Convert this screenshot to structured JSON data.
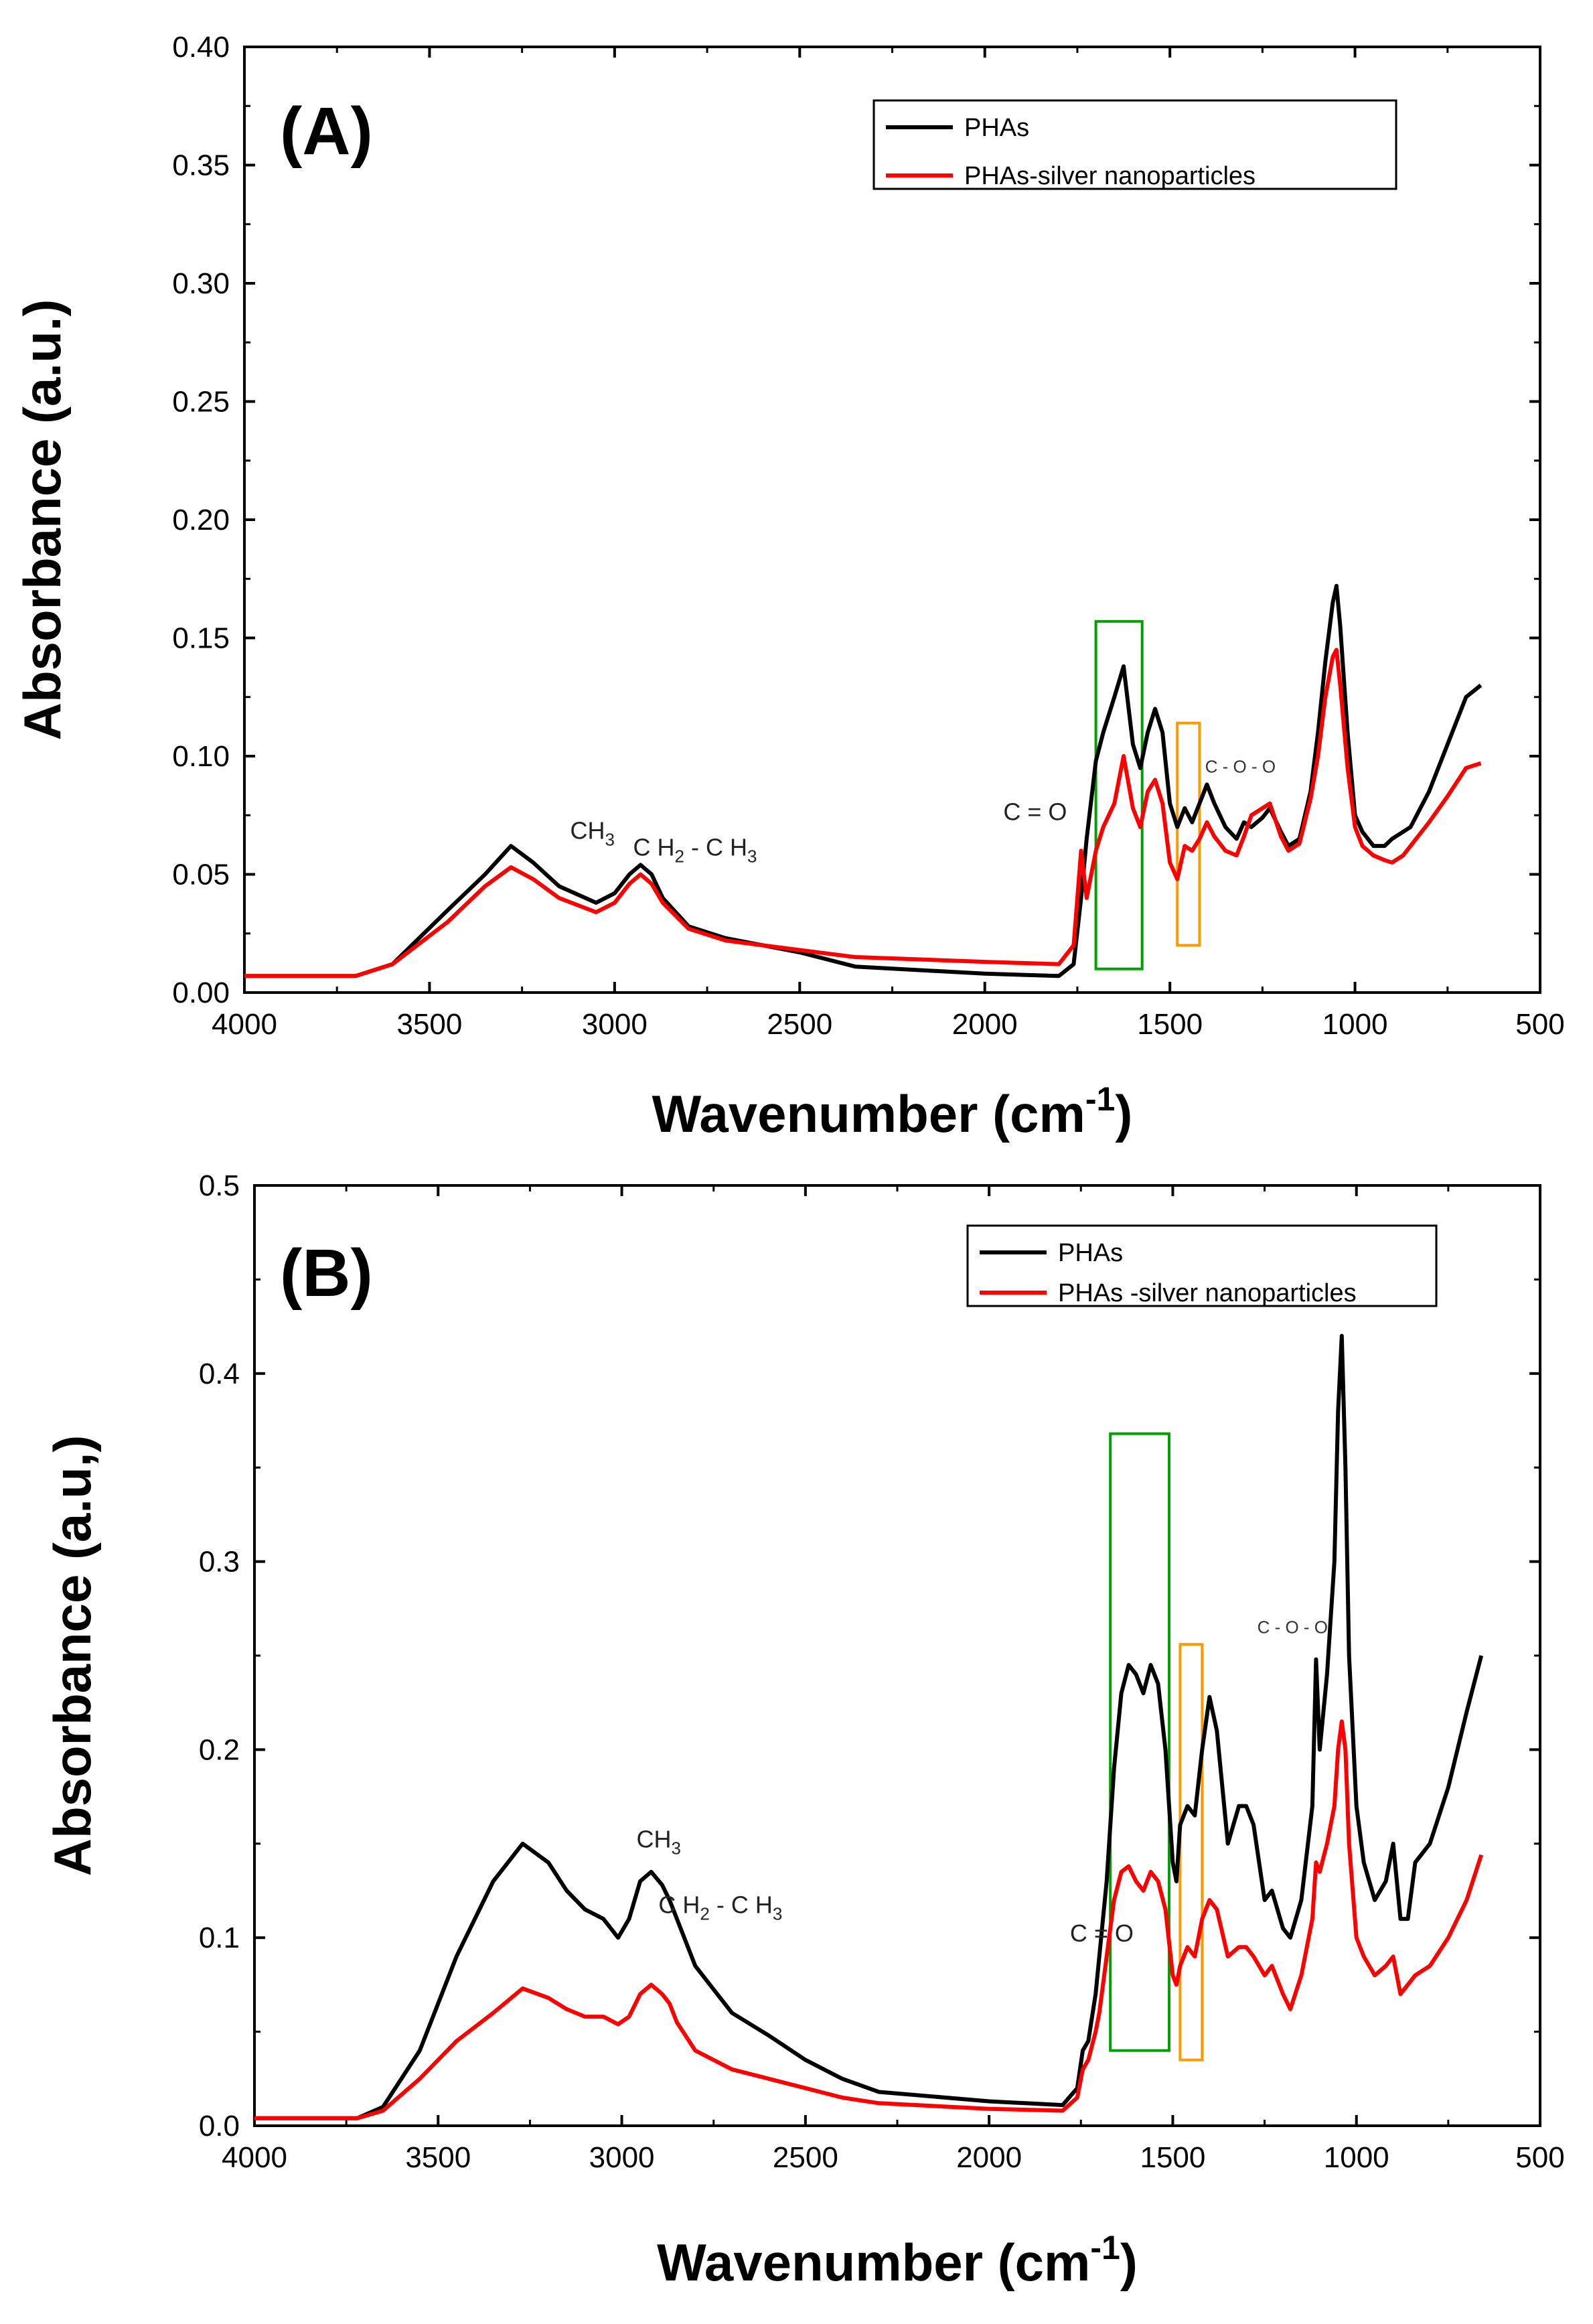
{
  "chart_data": [
    {
      "type": "line",
      "panel_label": "(A)",
      "xlabel": "Wavenumber (cm",
      "xlabel_sup": "-1",
      "xlabel_end": ")",
      "ylabel": "Absorbance (a.u.)",
      "xlim": [
        4000,
        500
      ],
      "ylim": [
        0,
        0.4
      ],
      "xticks": [
        4000,
        3500,
        3000,
        2500,
        2000,
        1500,
        1000,
        500
      ],
      "xtick_labels": [
        "4000",
        "3500",
        "3000",
        "2500",
        "2000",
        "1500",
        "1000",
        "500"
      ],
      "yticks": [
        0,
        0.05,
        0.1,
        0.15,
        0.2,
        0.25,
        0.3,
        0.35,
        0.4
      ],
      "ytick_labels": [
        "0.00",
        "0.05",
        "0.10",
        "0.15",
        "0.20",
        "0.25",
        "0.30",
        "0.35",
        "0.40"
      ],
      "legend": {
        "position": "top-right",
        "entries": [
          "PHAs",
          "PHAs-silver nanoparticles"
        ]
      },
      "series": [
        {
          "name": "PHAs",
          "color": "#000000",
          "x": [
            4000,
            3700,
            3600,
            3450,
            3350,
            3280,
            3220,
            3150,
            3050,
            3000,
            2960,
            2930,
            2900,
            2870,
            2800,
            2700,
            2500,
            2350,
            2000,
            1800,
            1760,
            1740,
            1725,
            1700,
            1680,
            1650,
            1625,
            1600,
            1580,
            1560,
            1540,
            1520,
            1500,
            1480,
            1460,
            1440,
            1420,
            1400,
            1380,
            1350,
            1320,
            1300,
            1280,
            1250,
            1230,
            1200,
            1180,
            1150,
            1120,
            1100,
            1080,
            1060,
            1050,
            1040,
            1020,
            1000,
            980,
            950,
            920,
            900,
            870,
            850,
            800,
            750,
            700,
            660
          ],
          "y": [
            0.007,
            0.007,
            0.012,
            0.035,
            0.05,
            0.062,
            0.055,
            0.045,
            0.038,
            0.042,
            0.05,
            0.054,
            0.05,
            0.04,
            0.028,
            0.023,
            0.017,
            0.011,
            0.008,
            0.007,
            0.012,
            0.04,
            0.065,
            0.098,
            0.11,
            0.125,
            0.138,
            0.105,
            0.095,
            0.11,
            0.12,
            0.11,
            0.08,
            0.07,
            0.078,
            0.072,
            0.08,
            0.088,
            0.08,
            0.07,
            0.065,
            0.072,
            0.07,
            0.074,
            0.078,
            0.068,
            0.062,
            0.065,
            0.085,
            0.11,
            0.14,
            0.165,
            0.172,
            0.155,
            0.11,
            0.075,
            0.068,
            0.062,
            0.062,
            0.065,
            0.068,
            0.07,
            0.085,
            0.105,
            0.125,
            0.13
          ]
        },
        {
          "name": "PHAs-silver nanoparticles",
          "color": "#ff0000",
          "x": [
            4000,
            3700,
            3600,
            3450,
            3350,
            3280,
            3220,
            3150,
            3050,
            3000,
            2960,
            2930,
            2900,
            2870,
            2800,
            2700,
            2500,
            2350,
            2000,
            1800,
            1760,
            1740,
            1725,
            1700,
            1680,
            1650,
            1625,
            1600,
            1580,
            1560,
            1540,
            1520,
            1500,
            1480,
            1460,
            1440,
            1420,
            1400,
            1380,
            1350,
            1320,
            1300,
            1280,
            1250,
            1230,
            1200,
            1180,
            1150,
            1120,
            1100,
            1080,
            1060,
            1050,
            1040,
            1020,
            1000,
            980,
            950,
            920,
            900,
            870,
            850,
            800,
            750,
            700,
            660
          ],
          "y": [
            0.007,
            0.007,
            0.012,
            0.03,
            0.045,
            0.053,
            0.048,
            0.04,
            0.034,
            0.038,
            0.046,
            0.05,
            0.046,
            0.038,
            0.027,
            0.022,
            0.018,
            0.015,
            0.013,
            0.012,
            0.02,
            0.06,
            0.04,
            0.06,
            0.07,
            0.08,
            0.1,
            0.078,
            0.07,
            0.085,
            0.09,
            0.08,
            0.055,
            0.048,
            0.062,
            0.06,
            0.065,
            0.072,
            0.066,
            0.06,
            0.058,
            0.066,
            0.075,
            0.078,
            0.08,
            0.066,
            0.06,
            0.063,
            0.082,
            0.1,
            0.125,
            0.142,
            0.145,
            0.13,
            0.095,
            0.07,
            0.062,
            0.058,
            0.056,
            0.055,
            0.058,
            0.062,
            0.072,
            0.083,
            0.095,
            0.097
          ]
        }
      ],
      "annotations": [
        {
          "text": "CH",
          "sub": "3",
          "x": 3120,
          "y": 0.065,
          "size": "normal"
        },
        {
          "text": "C H",
          "sub": "2",
          "mid": " - C H",
          "sub2": "3",
          "x": 2950,
          "y": 0.058,
          "size": "normal"
        },
        {
          "text": "C = O",
          "x": 1950,
          "y": 0.073,
          "size": "normal"
        },
        {
          "text": "C - O - O",
          "x": 1405,
          "y": 0.093,
          "size": "small"
        }
      ],
      "boxes": [
        {
          "color": "#00a000",
          "x0": 1700,
          "x1": 1575,
          "y0": 0.01,
          "y1": 0.157
        },
        {
          "color": "#ff9900",
          "x0": 1480,
          "x1": 1420,
          "y0": 0.02,
          "y1": 0.114
        }
      ]
    },
    {
      "type": "line",
      "panel_label": "(B)",
      "xlabel": "Wavenumber (cm",
      "xlabel_sup": "-1",
      "xlabel_end": ")",
      "ylabel": "Absorbance (a.u,)",
      "xlim": [
        4000,
        500
      ],
      "ylim": [
        0,
        0.5
      ],
      "xticks": [
        4000,
        3500,
        3000,
        2500,
        2000,
        1500,
        1000,
        500
      ],
      "xtick_labels": [
        "4000",
        "3500",
        "3000",
        "2500",
        "2000",
        "1500",
        "1000",
        "500"
      ],
      "yticks": [
        0,
        0.1,
        0.2,
        0.3,
        0.4,
        0.5
      ],
      "ytick_labels": [
        "0.0",
        "0.1",
        "0.2",
        "0.3",
        "0.4",
        "0.5"
      ],
      "legend": {
        "position": "top-right",
        "entries": [
          "PHAs",
          "PHAs -silver nanoparticles"
        ]
      },
      "series": [
        {
          "name": "PHAs",
          "color": "#000000",
          "x": [
            4000,
            3720,
            3650,
            3550,
            3450,
            3350,
            3270,
            3200,
            3150,
            3100,
            3050,
            3010,
            2980,
            2950,
            2920,
            2890,
            2870,
            2850,
            2800,
            2700,
            2600,
            2500,
            2400,
            2300,
            2000,
            1800,
            1760,
            1745,
            1730,
            1710,
            1700,
            1680,
            1660,
            1640,
            1620,
            1600,
            1580,
            1560,
            1540,
            1520,
            1500,
            1490,
            1480,
            1460,
            1440,
            1420,
            1400,
            1380,
            1350,
            1320,
            1300,
            1280,
            1250,
            1230,
            1200,
            1180,
            1150,
            1120,
            1110,
            1100,
            1080,
            1060,
            1050,
            1040,
            1030,
            1020,
            1000,
            980,
            950,
            920,
            900,
            880,
            860,
            840,
            800,
            750,
            700,
            660
          ],
          "y": [
            0.004,
            0.004,
            0.01,
            0.04,
            0.09,
            0.13,
            0.15,
            0.14,
            0.125,
            0.115,
            0.11,
            0.1,
            0.11,
            0.13,
            0.135,
            0.128,
            0.12,
            0.11,
            0.085,
            0.06,
            0.048,
            0.035,
            0.025,
            0.018,
            0.013,
            0.011,
            0.02,
            0.04,
            0.045,
            0.07,
            0.09,
            0.13,
            0.19,
            0.23,
            0.245,
            0.24,
            0.23,
            0.245,
            0.235,
            0.2,
            0.14,
            0.13,
            0.16,
            0.17,
            0.165,
            0.2,
            0.228,
            0.21,
            0.15,
            0.17,
            0.17,
            0.16,
            0.12,
            0.125,
            0.105,
            0.1,
            0.12,
            0.17,
            0.248,
            0.2,
            0.24,
            0.3,
            0.38,
            0.42,
            0.35,
            0.25,
            0.17,
            0.14,
            0.12,
            0.13,
            0.15,
            0.11,
            0.11,
            0.14,
            0.15,
            0.18,
            0.22,
            0.25
          ]
        },
        {
          "name": "PHAs -silver nanoparticles",
          "color": "#ff0000",
          "x": [
            4000,
            3720,
            3650,
            3550,
            3450,
            3350,
            3270,
            3200,
            3150,
            3100,
            3050,
            3010,
            2980,
            2950,
            2920,
            2890,
            2870,
            2850,
            2800,
            2700,
            2600,
            2500,
            2400,
            2300,
            2000,
            1800,
            1760,
            1745,
            1730,
            1710,
            1700,
            1680,
            1660,
            1640,
            1620,
            1600,
            1580,
            1560,
            1540,
            1520,
            1500,
            1490,
            1480,
            1460,
            1440,
            1420,
            1400,
            1380,
            1350,
            1320,
            1300,
            1280,
            1250,
            1230,
            1200,
            1180,
            1150,
            1120,
            1110,
            1100,
            1080,
            1060,
            1050,
            1040,
            1030,
            1020,
            1000,
            980,
            950,
            920,
            900,
            880,
            860,
            840,
            800,
            750,
            700,
            660
          ],
          "y": [
            0.004,
            0.004,
            0.008,
            0.025,
            0.045,
            0.06,
            0.073,
            0.068,
            0.062,
            0.058,
            0.058,
            0.054,
            0.058,
            0.07,
            0.075,
            0.07,
            0.065,
            0.055,
            0.04,
            0.03,
            0.025,
            0.02,
            0.015,
            0.012,
            0.009,
            0.008,
            0.015,
            0.03,
            0.035,
            0.05,
            0.06,
            0.09,
            0.12,
            0.135,
            0.138,
            0.13,
            0.125,
            0.135,
            0.13,
            0.115,
            0.08,
            0.075,
            0.085,
            0.095,
            0.09,
            0.11,
            0.12,
            0.115,
            0.09,
            0.095,
            0.095,
            0.09,
            0.08,
            0.085,
            0.07,
            0.062,
            0.08,
            0.11,
            0.14,
            0.135,
            0.15,
            0.17,
            0.2,
            0.215,
            0.2,
            0.15,
            0.1,
            0.09,
            0.08,
            0.085,
            0.09,
            0.07,
            0.075,
            0.08,
            0.085,
            0.1,
            0.12,
            0.144
          ]
        }
      ],
      "annotations": [
        {
          "text": "CH",
          "sub": "3",
          "x": 2960,
          "y": 0.148,
          "size": "normal"
        },
        {
          "text": "C H",
          "sub": "2",
          "mid": " - C H",
          "sub2": "3",
          "x": 2900,
          "y": 0.113,
          "size": "normal"
        },
        {
          "text": "C = O",
          "x": 1780,
          "y": 0.098,
          "size": "normal"
        },
        {
          "text": "C - O - O",
          "x": 1270,
          "y": 0.262,
          "size": "small"
        }
      ],
      "boxes": [
        {
          "color": "#00a000",
          "x0": 1670,
          "x1": 1510,
          "y0": 0.04,
          "y1": 0.368
        },
        {
          "color": "#ff9900",
          "x0": 1480,
          "x1": 1420,
          "y0": 0.035,
          "y1": 0.256
        }
      ]
    }
  ]
}
